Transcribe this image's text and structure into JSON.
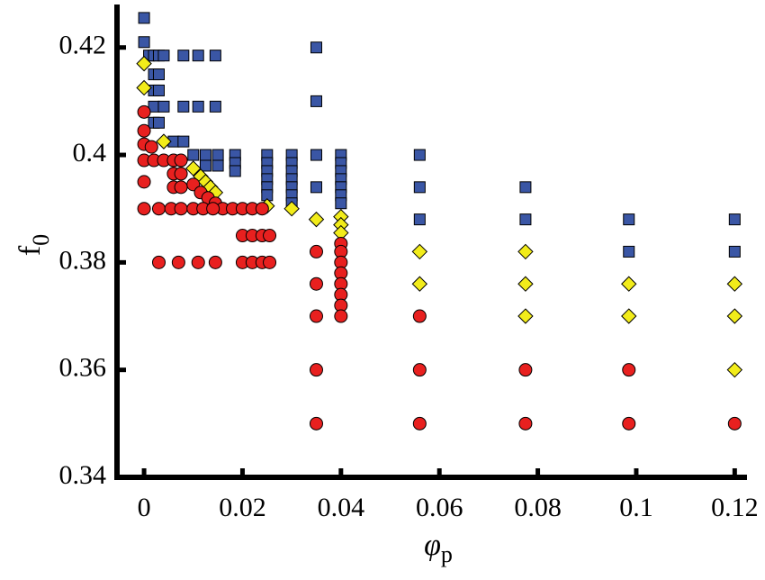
{
  "chart_data": {
    "type": "scatter",
    "xlabel": {
      "text": "φ",
      "sub": "p"
    },
    "ylabel": {
      "text": "f",
      "sub": "0"
    },
    "xlim": [
      -0.0055,
      0.1225
    ],
    "xticks": [
      0,
      0.02,
      0.04,
      0.06,
      0.08,
      0.1,
      0.12
    ],
    "ylim": [
      0.34,
      0.428
    ],
    "yticks": [
      0.34,
      0.36,
      0.38,
      0.4,
      0.42
    ],
    "series": [
      {
        "color": "#3a56a5",
        "marker": "square",
        "x": [
          0,
          0,
          0.001,
          0.002,
          0.003,
          0.004,
          0.008,
          0.011,
          0.0145,
          0.002,
          0.003,
          0.002,
          0.003,
          0.002,
          0.004,
          0.008,
          0.011,
          0.0145,
          0.002,
          0.003,
          0.006,
          0.008,
          0.01,
          0.0125,
          0.015,
          0.0125,
          0.015,
          0.0185,
          0.0185,
          0.0185,
          0.025,
          0.025,
          0.025,
          0.025,
          0.025,
          0.025,
          0.03,
          0.03,
          0.03,
          0.03,
          0.03,
          0.03,
          0.03,
          0.035,
          0.035,
          0.035,
          0.035,
          0.04,
          0.04,
          0.04,
          0.04,
          0.04,
          0.04,
          0.04,
          0.056,
          0.056,
          0.056,
          0.0775,
          0.0775,
          0.0985,
          0.0985,
          0.12,
          0.12
        ],
        "y": [
          0.4255,
          0.421,
          0.4185,
          0.4185,
          0.4185,
          0.4185,
          0.4185,
          0.4185,
          0.4185,
          0.415,
          0.415,
          0.412,
          0.412,
          0.409,
          0.409,
          0.409,
          0.409,
          0.409,
          0.406,
          0.406,
          0.4025,
          0.4025,
          0.4,
          0.4,
          0.4,
          0.398,
          0.398,
          0.4,
          0.3985,
          0.397,
          0.4,
          0.3985,
          0.397,
          0.3955,
          0.394,
          0.3925,
          0.4,
          0.3985,
          0.397,
          0.3955,
          0.394,
          0.3925,
          0.391,
          0.42,
          0.41,
          0.4,
          0.394,
          0.4,
          0.3985,
          0.397,
          0.3955,
          0.394,
          0.3925,
          0.391,
          0.4,
          0.394,
          0.388,
          0.394,
          0.388,
          0.388,
          0.382,
          0.388,
          0.382
        ]
      },
      {
        "color": "#f2ec1a",
        "marker": "diamond",
        "x": [
          0,
          0,
          0.004,
          0.01,
          0.0115,
          0.0125,
          0.0135,
          0.0145,
          0.025,
          0.03,
          0.035,
          0.04,
          0.04,
          0.04,
          0.056,
          0.056,
          0.0775,
          0.0775,
          0.0775,
          0.0985,
          0.0985,
          0.12,
          0.12,
          0.12
        ],
        "y": [
          0.417,
          0.4125,
          0.4025,
          0.3975,
          0.396,
          0.395,
          0.394,
          0.393,
          0.3905,
          0.39,
          0.388,
          0.3885,
          0.387,
          0.3855,
          0.382,
          0.376,
          0.382,
          0.376,
          0.37,
          0.376,
          0.37,
          0.376,
          0.37,
          0.36
        ]
      },
      {
        "color": "#e8201f",
        "marker": "circle",
        "x": [
          0,
          0,
          0,
          0,
          0,
          0,
          0.0015,
          0.002,
          0.004,
          0.006,
          0.0075,
          0.006,
          0.0075,
          0.006,
          0.0075,
          0.003,
          0.0055,
          0.0075,
          0.01,
          0.0115,
          0.013,
          0.0145,
          0.016,
          0.01,
          0.012,
          0.014,
          0.018,
          0.02,
          0.022,
          0.024,
          0.02,
          0.022,
          0.024,
          0.0255,
          0.003,
          0.007,
          0.011,
          0.0145,
          0.02,
          0.022,
          0.024,
          0.0255,
          0.035,
          0.035,
          0.035,
          0.035,
          0.035,
          0.04,
          0.04,
          0.04,
          0.04,
          0.04,
          0.04,
          0.04,
          0.04,
          0.056,
          0.056,
          0.056,
          0.0775,
          0.0775,
          0.0985,
          0.0985,
          0.12
        ],
        "y": [
          0.408,
          0.4045,
          0.402,
          0.399,
          0.395,
          0.39,
          0.4015,
          0.399,
          0.399,
          0.399,
          0.399,
          0.3965,
          0.3965,
          0.394,
          0.394,
          0.39,
          0.39,
          0.39,
          0.3945,
          0.393,
          0.392,
          0.391,
          0.39,
          0.39,
          0.39,
          0.39,
          0.39,
          0.39,
          0.39,
          0.39,
          0.385,
          0.385,
          0.385,
          0.385,
          0.38,
          0.38,
          0.38,
          0.38,
          0.38,
          0.38,
          0.38,
          0.38,
          0.382,
          0.376,
          0.37,
          0.36,
          0.35,
          0.3835,
          0.382,
          0.38,
          0.378,
          0.376,
          0.374,
          0.372,
          0.37,
          0.37,
          0.36,
          0.35,
          0.36,
          0.35,
          0.36,
          0.35,
          0.35
        ]
      }
    ]
  }
}
